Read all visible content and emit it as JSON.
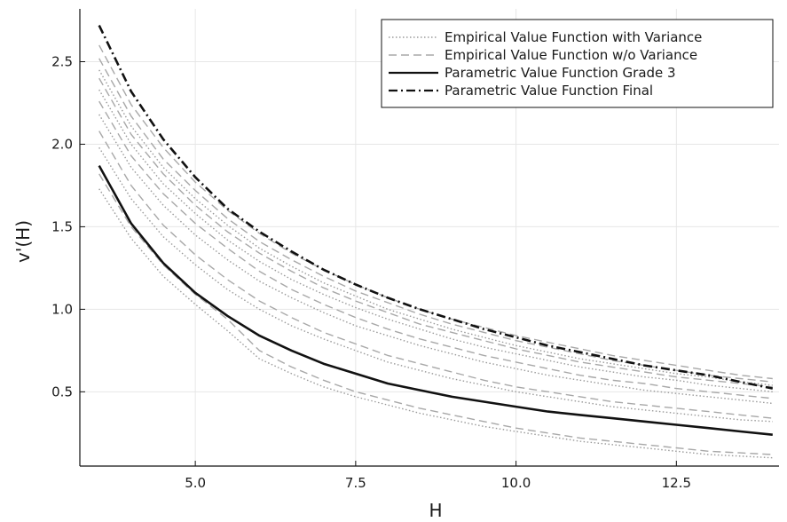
{
  "chart_data": {
    "type": "line",
    "title": "",
    "xlabel": "H",
    "ylabel": "v'(H)",
    "xlim": [
      3.2,
      14.1
    ],
    "ylim": [
      0.05,
      2.82
    ],
    "xticks": [
      5.0,
      7.5,
      10.0,
      12.5
    ],
    "xtick_labels": [
      "5.0",
      "7.5",
      "10.0",
      "12.5"
    ],
    "yticks": [
      0.5,
      1.0,
      1.5,
      2.0,
      2.5
    ],
    "ytick_labels": [
      "0.5",
      "1.0",
      "1.5",
      "2.0",
      "2.5"
    ],
    "grid": true,
    "legend_position": "top-right",
    "x": [
      3.5,
      4,
      4.5,
      5,
      5.5,
      6,
      6.5,
      7,
      7.5,
      8,
      8.5,
      9,
      9.5,
      10,
      10.5,
      11,
      11.5,
      12,
      12.5,
      13,
      13.5,
      14
    ],
    "series": [
      {
        "name": "Empirical Value Function with  Variance",
        "style": "dotted",
        "color": "#9a9a9a",
        "curves": [
          [
            1.73,
            1.43,
            1.2,
            1.03,
            0.87,
            0.7,
            0.61,
            0.53,
            0.47,
            0.42,
            0.37,
            0.33,
            0.29,
            0.26,
            0.23,
            0.2,
            0.18,
            0.16,
            0.14,
            0.12,
            0.11,
            0.1
          ],
          [
            1.98,
            1.67,
            1.44,
            1.27,
            1.12,
            1.0,
            0.9,
            0.82,
            0.75,
            0.68,
            0.63,
            0.58,
            0.54,
            0.5,
            0.47,
            0.44,
            0.41,
            0.39,
            0.37,
            0.35,
            0.33,
            0.32
          ],
          [
            2.18,
            1.86,
            1.63,
            1.45,
            1.3,
            1.17,
            1.07,
            0.98,
            0.9,
            0.84,
            0.78,
            0.73,
            0.68,
            0.64,
            0.6,
            0.57,
            0.54,
            0.51,
            0.49,
            0.47,
            0.45,
            0.43
          ],
          [
            2.33,
            2.0,
            1.76,
            1.58,
            1.42,
            1.29,
            1.18,
            1.09,
            1.01,
            0.94,
            0.88,
            0.82,
            0.77,
            0.73,
            0.69,
            0.65,
            0.62,
            0.59,
            0.57,
            0.54,
            0.52,
            0.5
          ],
          [
            2.45,
            2.11,
            1.86,
            1.67,
            1.51,
            1.37,
            1.26,
            1.16,
            1.08,
            1.0,
            0.94,
            0.88,
            0.83,
            0.78,
            0.74,
            0.7,
            0.67,
            0.64,
            0.61,
            0.59,
            0.56,
            0.54
          ]
        ]
      },
      {
        "name": "Empirical Value Function w/o Variance",
        "style": "dashed",
        "color": "#a8a8a8",
        "curves": [
          [
            1.82,
            1.5,
            1.27,
            1.09,
            0.94,
            0.75,
            0.65,
            0.57,
            0.5,
            0.45,
            0.4,
            0.36,
            0.32,
            0.28,
            0.25,
            0.22,
            0.2,
            0.18,
            0.16,
            0.14,
            0.13,
            0.12
          ],
          [
            2.08,
            1.75,
            1.51,
            1.33,
            1.18,
            1.05,
            0.95,
            0.86,
            0.79,
            0.72,
            0.67,
            0.62,
            0.57,
            0.53,
            0.5,
            0.47,
            0.44,
            0.42,
            0.4,
            0.38,
            0.36,
            0.34
          ],
          [
            2.26,
            1.93,
            1.7,
            1.52,
            1.37,
            1.23,
            1.12,
            1.03,
            0.95,
            0.88,
            0.82,
            0.77,
            0.72,
            0.68,
            0.64,
            0.6,
            0.57,
            0.55,
            0.52,
            0.5,
            0.48,
            0.46
          ],
          [
            2.4,
            2.06,
            1.82,
            1.63,
            1.47,
            1.34,
            1.23,
            1.13,
            1.05,
            0.98,
            0.91,
            0.86,
            0.81,
            0.76,
            0.72,
            0.68,
            0.65,
            0.62,
            0.59,
            0.57,
            0.55,
            0.53
          ],
          [
            2.52,
            2.17,
            1.91,
            1.72,
            1.55,
            1.41,
            1.3,
            1.2,
            1.11,
            1.04,
            0.97,
            0.91,
            0.86,
            0.81,
            0.77,
            0.73,
            0.69,
            0.66,
            0.63,
            0.6,
            0.58,
            0.56
          ],
          [
            2.6,
            2.24,
            1.98,
            1.77,
            1.6,
            1.46,
            1.34,
            1.24,
            1.15,
            1.07,
            1.0,
            0.94,
            0.89,
            0.84,
            0.8,
            0.76,
            0.72,
            0.69,
            0.66,
            0.63,
            0.6,
            0.58
          ]
        ]
      },
      {
        "name": "Parametric Value Function Grade 3",
        "style": "solid",
        "color": "#111111",
        "curves": [
          [
            1.87,
            1.52,
            1.28,
            1.1,
            0.96,
            0.84,
            0.75,
            0.67,
            0.61,
            0.55,
            0.51,
            0.47,
            0.44,
            0.41,
            0.38,
            0.36,
            0.34,
            0.32,
            0.3,
            0.28,
            0.26,
            0.24
          ]
        ]
      },
      {
        "name": "Parametric Value Function Final",
        "style": "dashdot",
        "color": "#111111",
        "curves": [
          [
            2.72,
            2.32,
            2.03,
            1.8,
            1.61,
            1.47,
            1.35,
            1.24,
            1.15,
            1.07,
            1.0,
            0.94,
            0.88,
            0.83,
            0.78,
            0.74,
            0.7,
            0.66,
            0.63,
            0.6,
            0.56,
            0.52
          ]
        ]
      }
    ]
  }
}
